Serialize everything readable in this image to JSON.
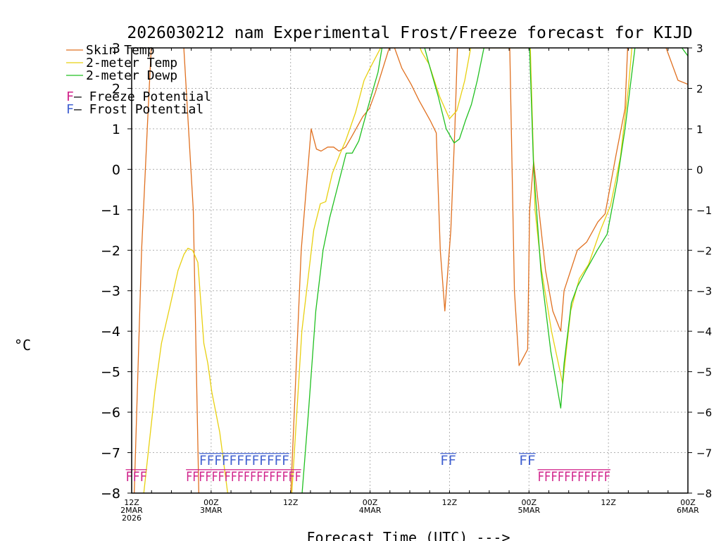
{
  "chart_data": {
    "type": "line",
    "title": "2026030212 nam Experimental Frost/Freeze forecast for KIJD",
    "xlabel": "Forecast Time (UTC) --->",
    "ylabel": "°C",
    "ylim": [
      -8,
      3
    ],
    "yticks": [
      3,
      2,
      1,
      0,
      -1,
      -2,
      -3,
      -4,
      -5,
      -6,
      -7,
      -8
    ],
    "ytick_labels": [
      "3",
      "2",
      "1",
      "0",
      "−1",
      "−2",
      "−3",
      "−4",
      "−5",
      "−6",
      "−7",
      "−8"
    ],
    "xlim_hours": [
      0,
      84
    ],
    "xticks": [
      {
        "hour": 0,
        "line1": "12Z",
        "line2": "2MAR",
        "line3": "2026"
      },
      {
        "hour": 12,
        "line1": "00Z",
        "line2": "3MAR",
        "line3": ""
      },
      {
        "hour": 24,
        "line1": "12Z",
        "line2": "",
        "line3": ""
      },
      {
        "hour": 36,
        "line1": "00Z",
        "line2": "4MAR",
        "line3": ""
      },
      {
        "hour": 48,
        "line1": "12Z",
        "line2": "",
        "line3": ""
      },
      {
        "hour": 60,
        "line1": "00Z",
        "line2": "5MAR",
        "line3": ""
      },
      {
        "hour": 72,
        "line1": "12Z",
        "line2": "",
        "line3": ""
      },
      {
        "hour": 84,
        "line1": "00Z",
        "line2": "6MAR",
        "line3": ""
      }
    ],
    "series": [
      {
        "name": "Skin Temp",
        "color": "#e07020",
        "points": [
          [
            0.3,
            -8.5
          ],
          [
            1.5,
            -2
          ],
          [
            2.5,
            1.5
          ],
          [
            3.1,
            3.5
          ],
          [
            7.7,
            3.5
          ],
          [
            9.3,
            -1
          ],
          [
            10.2,
            -8.5
          ],
          [
            23.9,
            -8.5
          ],
          [
            25.6,
            -2
          ],
          [
            27.1,
            1
          ],
          [
            27.9,
            0.5
          ],
          [
            28.6,
            0.45
          ],
          [
            29.6,
            0.55
          ],
          [
            30.5,
            0.55
          ],
          [
            31.3,
            0.45
          ],
          [
            32.3,
            0.55
          ],
          [
            33.2,
            0.8
          ],
          [
            34.9,
            1.3
          ],
          [
            35.9,
            1.5
          ],
          [
            36.8,
            1.9
          ],
          [
            38.9,
            3
          ],
          [
            39.7,
            3
          ],
          [
            40.8,
            2.5
          ],
          [
            42.2,
            2.1
          ],
          [
            43.4,
            1.7
          ],
          [
            45.1,
            1.2
          ],
          [
            46,
            0.9
          ],
          [
            46.6,
            -2
          ],
          [
            47.3,
            -3.5
          ],
          [
            48.2,
            -1.5
          ],
          [
            48.8,
            1
          ],
          [
            49.2,
            3
          ],
          [
            52,
            3
          ],
          [
            57.1,
            3
          ],
          [
            57.8,
            -3
          ],
          [
            58.5,
            -4.85
          ],
          [
            59.8,
            -4.45
          ],
          [
            60.1,
            -1
          ],
          [
            60.7,
            0.2
          ],
          [
            61.5,
            -1
          ],
          [
            62.5,
            -2.5
          ],
          [
            63.6,
            -3.5
          ],
          [
            64.8,
            -4
          ],
          [
            65.3,
            -3
          ],
          [
            67.3,
            -2
          ],
          [
            68.7,
            -1.8
          ],
          [
            70.4,
            -1.3
          ],
          [
            71.5,
            -1.1
          ],
          [
            73.2,
            0.4
          ],
          [
            74.5,
            1.5
          ],
          [
            74.9,
            3
          ],
          [
            75.2,
            3.4
          ],
          [
            76.3,
            3
          ],
          [
            80.7,
            3
          ],
          [
            82.5,
            2.2
          ],
          [
            84,
            2.1
          ]
        ]
      },
      {
        "name": "2-meter Temp",
        "color": "#e8d010",
        "points": [
          [
            1.5,
            -8.5
          ],
          [
            2.5,
            -7
          ],
          [
            3.5,
            -5.5
          ],
          [
            4.5,
            -4.3
          ],
          [
            5.9,
            -3.3
          ],
          [
            7,
            -2.5
          ],
          [
            7.9,
            -2.1
          ],
          [
            8.5,
            -1.95
          ],
          [
            9.2,
            -2
          ],
          [
            10,
            -2.3
          ],
          [
            10.9,
            -4.3
          ],
          [
            11.5,
            -4.8
          ],
          [
            12.1,
            -5.5
          ],
          [
            13.3,
            -6.5
          ],
          [
            14.9,
            -8.5
          ],
          [
            24,
            -8.5
          ],
          [
            25.7,
            -4
          ],
          [
            27.5,
            -1.5
          ],
          [
            28.5,
            -0.85
          ],
          [
            29.3,
            -0.8
          ],
          [
            30.3,
            -0.1
          ],
          [
            31.5,
            0.4
          ],
          [
            32.3,
            0.7
          ],
          [
            33.8,
            1.4
          ],
          [
            35.1,
            2.2
          ],
          [
            36,
            2.5
          ],
          [
            37.6,
            3
          ],
          [
            38.8,
            3.4
          ],
          [
            42.6,
            3.4
          ],
          [
            43.8,
            2.9
          ],
          [
            44.9,
            2.6
          ],
          [
            46.5,
            1.8
          ],
          [
            48,
            1.25
          ],
          [
            49.1,
            1.45
          ],
          [
            50.3,
            2.2
          ],
          [
            51.2,
            3
          ],
          [
            53.3,
            3
          ],
          [
            57.9,
            3
          ],
          [
            60.2,
            3
          ],
          [
            60.9,
            -1
          ],
          [
            61.9,
            -2.5
          ],
          [
            63.4,
            -4
          ],
          [
            65.1,
            -5.3
          ],
          [
            66.3,
            -3.5
          ],
          [
            67.6,
            -2.7
          ],
          [
            69,
            -2.35
          ],
          [
            70.8,
            -1.5
          ],
          [
            72.3,
            -0.9
          ],
          [
            73.8,
            0.3
          ],
          [
            75,
            2
          ],
          [
            75.8,
            3.5
          ]
        ]
      },
      {
        "name": "2-meter Dewp",
        "color": "#20c020",
        "points": [
          [
            25.5,
            -8.5
          ],
          [
            26.7,
            -6
          ],
          [
            27.8,
            -3.5
          ],
          [
            28.9,
            -2
          ],
          [
            29.9,
            -1.2
          ],
          [
            31,
            -0.5
          ],
          [
            32.4,
            0.4
          ],
          [
            33.3,
            0.4
          ],
          [
            34.3,
            0.7
          ],
          [
            35.8,
            1.6
          ],
          [
            37.2,
            2.4
          ],
          [
            37.8,
            3
          ],
          [
            39.2,
            3.4
          ],
          [
            43.6,
            3.4
          ],
          [
            44.9,
            2.6
          ],
          [
            46.3,
            1.8
          ],
          [
            47.5,
            1
          ],
          [
            48.7,
            0.65
          ],
          [
            49.5,
            0.75
          ],
          [
            50.4,
            1.2
          ],
          [
            51.3,
            1.6
          ],
          [
            52.2,
            2.2
          ],
          [
            53.2,
            3
          ],
          [
            54.2,
            3.5
          ],
          [
            56.6,
            3.5
          ],
          [
            58.6,
            3.5
          ],
          [
            60.1,
            3
          ],
          [
            60.7,
            0
          ],
          [
            61.8,
            -2.5
          ],
          [
            63.3,
            -4.5
          ],
          [
            64.8,
            -5.9
          ],
          [
            65.3,
            -4.8
          ],
          [
            66.4,
            -3.3
          ],
          [
            67.3,
            -2.9
          ],
          [
            68.6,
            -2.5
          ],
          [
            70.3,
            -2
          ],
          [
            71.8,
            -1.6
          ],
          [
            73.3,
            -0.3
          ],
          [
            74.5,
            1
          ],
          [
            76,
            3
          ],
          [
            76.2,
            3.5
          ],
          [
            81.5,
            3.5
          ],
          [
            83.1,
            3
          ],
          [
            84,
            2.8
          ]
        ]
      }
    ],
    "legend": [
      {
        "label": "Skin Temp",
        "color": "#e07020"
      },
      {
        "label": "2-meter Temp",
        "color": "#e8d010"
      },
      {
        "label": "2-meter Dewp",
        "color": "#20c020"
      }
    ],
    "potential_legend": [
      {
        "mark": "F",
        "text": " – Freeze Potential",
        "color": "#d0208a"
      },
      {
        "mark": "F",
        "text": " – Frost Potential",
        "color": "#4060d0"
      }
    ],
    "freeze_markers": [
      {
        "text": "FFF",
        "start_hour": -0.9,
        "end_hour": 2.3
      },
      {
        "text": "FFFFFFFFFFFFFFFFFF",
        "start_hour": 8.2,
        "end_hour": 25.6
      },
      {
        "text": "FFFFFFFFFFF",
        "start_hour": 61.3,
        "end_hour": 72.3
      }
    ],
    "frost_markers": [
      {
        "text": "FFFFFFFFFFFF",
        "start_hour": 10.2,
        "end_hour": 23.8
      },
      {
        "text": "FF",
        "start_hour": 46.6,
        "end_hour": 49
      },
      {
        "text": "FF",
        "start_hour": 58.5,
        "end_hour": 61
      }
    ],
    "freeze_color": "#d0208a",
    "frost_color": "#4060d0"
  }
}
